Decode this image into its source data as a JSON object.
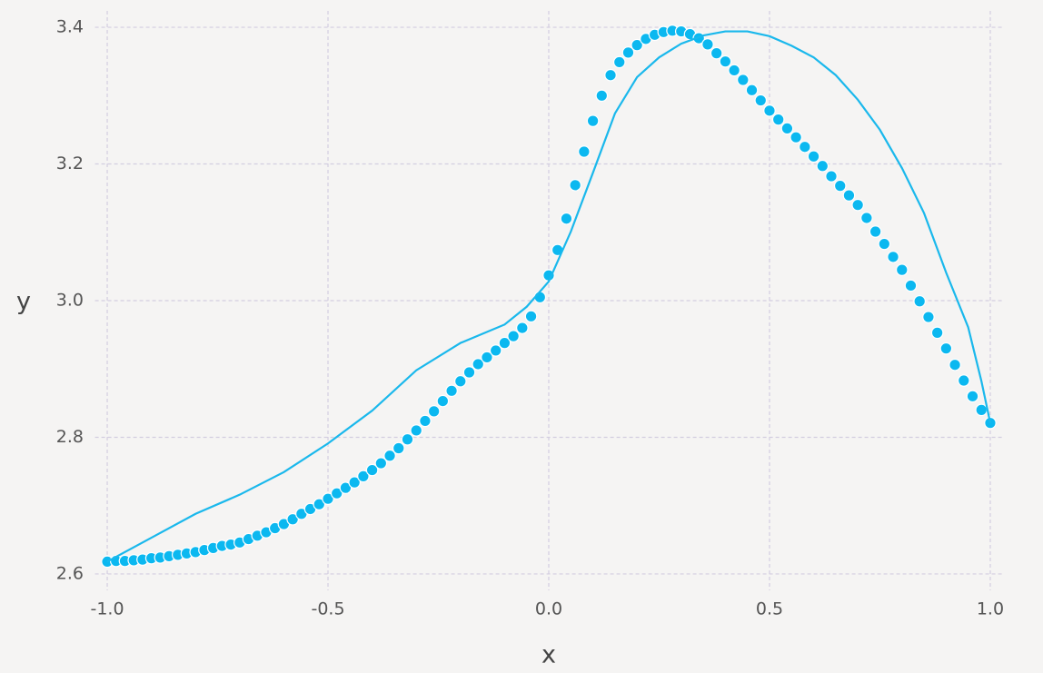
{
  "chart_data": {
    "type": "scatter-line",
    "xlabel": "x",
    "ylabel": "y",
    "xlim": [
      -1.04,
      1.04
    ],
    "ylim": [
      2.576,
      3.424
    ],
    "xticks": [
      {
        "value": -1,
        "label": "-1.0"
      },
      -0.5,
      {
        "value": 0,
        "label": "0.0"
      },
      0.5,
      {
        "value": 1,
        "label": "1.0"
      }
    ],
    "yticks": [
      2.6,
      2.8,
      {
        "value": 3,
        "label": "3.0"
      },
      3.2,
      3.4
    ],
    "grid": true,
    "series": [
      {
        "type": "scatter",
        "color": "#0bb8f0",
        "x": [
          -1,
          -0.98,
          -0.96,
          -0.94,
          -0.92,
          -0.9,
          -0.88,
          -0.86,
          -0.84,
          -0.82,
          -0.8,
          -0.78,
          -0.76,
          -0.74,
          -0.72,
          -0.7,
          -0.68,
          -0.66,
          -0.64,
          -0.62,
          -0.6,
          -0.58,
          -0.56,
          -0.54,
          -0.52,
          -0.5,
          -0.48,
          -0.46,
          -0.44,
          -0.42,
          -0.4,
          -0.38,
          -0.36,
          -0.34,
          -0.32,
          -0.3,
          -0.28,
          -0.26,
          -0.24,
          -0.22,
          -0.2,
          -0.18,
          -0.16,
          -0.14,
          -0.12,
          -0.1,
          -0.08,
          -0.06,
          -0.04,
          -0.02,
          0,
          0.02,
          0.04,
          0.06,
          0.08,
          0.1,
          0.12,
          0.14,
          0.16,
          0.18,
          0.2,
          0.22,
          0.24,
          0.26,
          0.28,
          0.3,
          0.32,
          0.34,
          0.36,
          0.38,
          0.4,
          0.42,
          0.44,
          0.46,
          0.48,
          0.5,
          0.52,
          0.54,
          0.56,
          0.58,
          0.6,
          0.62,
          0.64,
          0.66,
          0.68,
          0.7,
          0.72,
          0.74,
          0.76,
          0.78,
          0.8,
          0.82,
          0.84,
          0.86,
          0.88,
          0.9,
          0.92,
          0.94,
          0.96,
          0.98,
          1
        ],
        "values": [
          2.618,
          2.619,
          2.619,
          2.62,
          2.621,
          2.623,
          2.624,
          2.626,
          2.628,
          2.63,
          2.632,
          2.635,
          2.638,
          2.641,
          2.643,
          2.646,
          2.651,
          2.656,
          2.661,
          2.667,
          2.673,
          2.68,
          2.688,
          2.695,
          2.702,
          2.71,
          2.718,
          2.726,
          2.734,
          2.743,
          2.752,
          2.762,
          2.773,
          2.784,
          2.797,
          2.81,
          2.824,
          2.838,
          2.853,
          2.868,
          2.882,
          2.895,
          2.907,
          2.917,
          2.927,
          2.938,
          2.948,
          2.96,
          2.977,
          3.005,
          3.037,
          3.074,
          3.12,
          3.169,
          3.218,
          3.263,
          3.3,
          3.33,
          3.349,
          3.363,
          3.374,
          3.383,
          3.389,
          3.393,
          3.395,
          3.394,
          3.39,
          3.384,
          3.375,
          3.362,
          3.35,
          3.337,
          3.323,
          3.308,
          3.293,
          3.278,
          3.265,
          3.252,
          3.239,
          3.225,
          3.211,
          3.197,
          3.182,
          3.168,
          3.154,
          3.14,
          3.121,
          3.101,
          3.083,
          3.064,
          3.045,
          3.022,
          2.999,
          2.976,
          2.953,
          2.93,
          2.906,
          2.883,
          2.86,
          2.84,
          2.821
        ]
      },
      {
        "type": "line",
        "color": "#1ab8ec",
        "x": [
          -1,
          -0.9,
          -0.8,
          -0.7,
          -0.6,
          -0.5,
          -0.4,
          -0.3,
          -0.2,
          -0.1,
          -0.05,
          0,
          0.05,
          0.1,
          0.15,
          0.2,
          0.25,
          0.3,
          0.35,
          0.4,
          0.45,
          0.5,
          0.55,
          0.6,
          0.65,
          0.7,
          0.75,
          0.8,
          0.85,
          0.9,
          0.95,
          0.98,
          1
        ],
        "values": [
          2.618,
          2.653,
          2.688,
          2.716,
          2.749,
          2.791,
          2.839,
          2.898,
          2.938,
          2.965,
          2.991,
          3.028,
          3.101,
          3.187,
          3.274,
          3.327,
          3.356,
          3.376,
          3.388,
          3.394,
          3.394,
          3.387,
          3.373,
          3.356,
          3.33,
          3.294,
          3.25,
          3.194,
          3.128,
          3.041,
          2.961,
          2.882,
          2.821
        ]
      }
    ]
  }
}
